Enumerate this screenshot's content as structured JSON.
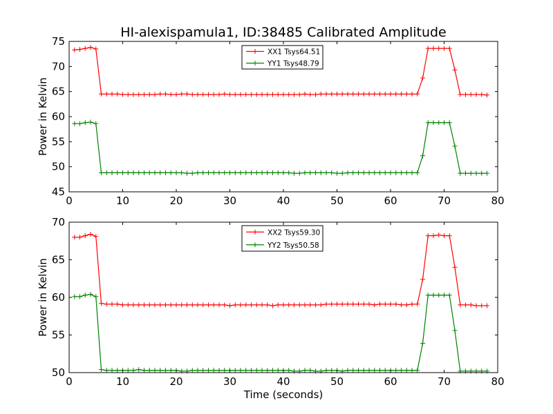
{
  "chart_data": [
    {
      "type": "line",
      "title": "HI-alexispamula1, ID:38485 Calibrated Amplitude",
      "xlabel": "",
      "ylabel": "Power in Kelvin",
      "xlim": [
        0,
        80
      ],
      "ylim": [
        45,
        75
      ],
      "xticks": [
        0,
        10,
        20,
        30,
        40,
        50,
        60,
        70,
        80
      ],
      "yticks": [
        45,
        50,
        55,
        60,
        65,
        70,
        75
      ],
      "grid": false,
      "legend_position": "top-center",
      "x": [
        1,
        2,
        3,
        4,
        5,
        6,
        7,
        8,
        9,
        10,
        11,
        12,
        13,
        14,
        15,
        16,
        17,
        18,
        19,
        20,
        21,
        22,
        23,
        24,
        25,
        26,
        27,
        28,
        29,
        30,
        31,
        32,
        33,
        34,
        35,
        36,
        37,
        38,
        39,
        40,
        41,
        42,
        43,
        44,
        45,
        46,
        47,
        48,
        49,
        50,
        51,
        52,
        53,
        54,
        55,
        56,
        57,
        58,
        59,
        60,
        61,
        62,
        63,
        64,
        65,
        66,
        67,
        68,
        69,
        70,
        71,
        72,
        73,
        74,
        75,
        76,
        77,
        78
      ],
      "series": [
        {
          "name": "XX1 Tsys64.51",
          "color": "#ff0000",
          "values": [
            73.3,
            73.4,
            73.6,
            73.8,
            73.5,
            64.5,
            64.5,
            64.5,
            64.5,
            64.4,
            64.4,
            64.4,
            64.4,
            64.4,
            64.4,
            64.4,
            64.5,
            64.5,
            64.4,
            64.4,
            64.5,
            64.5,
            64.4,
            64.4,
            64.4,
            64.4,
            64.4,
            64.4,
            64.5,
            64.4,
            64.4,
            64.4,
            64.4,
            64.4,
            64.4,
            64.4,
            64.4,
            64.4,
            64.4,
            64.4,
            64.4,
            64.4,
            64.4,
            64.5,
            64.4,
            64.4,
            64.5,
            64.5,
            64.5,
            64.5,
            64.5,
            64.5,
            64.5,
            64.5,
            64.5,
            64.5,
            64.5,
            64.5,
            64.5,
            64.5,
            64.5,
            64.5,
            64.5,
            64.5,
            64.5,
            67.7,
            73.6,
            73.6,
            73.6,
            73.6,
            73.6,
            69.3,
            64.4,
            64.4,
            64.4,
            64.4,
            64.4,
            64.3
          ]
        },
        {
          "name": "YY1 Tsys48.79",
          "color": "#008000",
          "values": [
            58.6,
            58.6,
            58.8,
            58.9,
            58.6,
            48.8,
            48.8,
            48.8,
            48.8,
            48.8,
            48.8,
            48.8,
            48.8,
            48.8,
            48.8,
            48.8,
            48.8,
            48.8,
            48.8,
            48.8,
            48.8,
            48.7,
            48.7,
            48.8,
            48.8,
            48.8,
            48.8,
            48.8,
            48.8,
            48.8,
            48.8,
            48.8,
            48.8,
            48.8,
            48.8,
            48.8,
            48.8,
            48.8,
            48.8,
            48.8,
            48.8,
            48.7,
            48.7,
            48.8,
            48.8,
            48.8,
            48.8,
            48.8,
            48.8,
            48.7,
            48.7,
            48.8,
            48.8,
            48.8,
            48.8,
            48.8,
            48.8,
            48.8,
            48.8,
            48.8,
            48.8,
            48.8,
            48.8,
            48.8,
            48.8,
            52.2,
            58.8,
            58.8,
            58.8,
            58.8,
            58.8,
            54.1,
            48.7,
            48.7,
            48.7,
            48.7,
            48.7,
            48.7
          ]
        }
      ]
    },
    {
      "type": "line",
      "title": "",
      "xlabel": "Time (seconds)",
      "ylabel": "Power in Kelvin",
      "xlim": [
        0,
        80
      ],
      "ylim": [
        50,
        70
      ],
      "xticks": [
        0,
        10,
        20,
        30,
        40,
        50,
        60,
        70,
        80
      ],
      "yticks": [
        50,
        55,
        60,
        65,
        70
      ],
      "grid": false,
      "legend_position": "top-center",
      "x": [
        1,
        2,
        3,
        4,
        5,
        6,
        7,
        8,
        9,
        10,
        11,
        12,
        13,
        14,
        15,
        16,
        17,
        18,
        19,
        20,
        21,
        22,
        23,
        24,
        25,
        26,
        27,
        28,
        29,
        30,
        31,
        32,
        33,
        34,
        35,
        36,
        37,
        38,
        39,
        40,
        41,
        42,
        43,
        44,
        45,
        46,
        47,
        48,
        49,
        50,
        51,
        52,
        53,
        54,
        55,
        56,
        57,
        58,
        59,
        60,
        61,
        62,
        63,
        64,
        65,
        66,
        67,
        68,
        69,
        70,
        71,
        72,
        73,
        74,
        75,
        76,
        77,
        78
      ],
      "series": [
        {
          "name": "XX2 Tsys59.30",
          "color": "#ff0000",
          "values": [
            68.0,
            68.0,
            68.2,
            68.4,
            68.1,
            59.2,
            59.1,
            59.1,
            59.1,
            59.0,
            59.0,
            59.0,
            59.0,
            59.0,
            59.0,
            59.0,
            59.0,
            59.0,
            59.0,
            59.0,
            59.0,
            59.0,
            59.0,
            59.0,
            59.0,
            59.0,
            59.0,
            59.0,
            59.0,
            58.9,
            59.0,
            59.0,
            59.0,
            59.0,
            59.0,
            59.0,
            59.0,
            58.9,
            59.0,
            59.0,
            59.0,
            59.0,
            59.0,
            59.0,
            59.0,
            59.0,
            59.0,
            59.1,
            59.1,
            59.1,
            59.1,
            59.1,
            59.1,
            59.1,
            59.1,
            59.1,
            59.0,
            59.1,
            59.1,
            59.1,
            59.1,
            59.0,
            59.0,
            59.1,
            59.1,
            62.4,
            68.2,
            68.2,
            68.3,
            68.2,
            68.2,
            64.0,
            59.0,
            59.0,
            59.0,
            58.9,
            58.9,
            58.9
          ]
        },
        {
          "name": "YY2 Tsys50.58",
          "color": "#008000",
          "values": [
            60.1,
            60.1,
            60.3,
            60.4,
            60.1,
            50.4,
            50.3,
            50.3,
            50.3,
            50.3,
            50.3,
            50.3,
            50.4,
            50.3,
            50.3,
            50.3,
            50.3,
            50.3,
            50.3,
            50.3,
            50.2,
            50.2,
            50.3,
            50.3,
            50.3,
            50.3,
            50.3,
            50.3,
            50.3,
            50.3,
            50.3,
            50.3,
            50.3,
            50.3,
            50.3,
            50.3,
            50.3,
            50.3,
            50.3,
            50.3,
            50.3,
            50.2,
            50.2,
            50.3,
            50.3,
            50.2,
            50.2,
            50.3,
            50.3,
            50.3,
            50.2,
            50.3,
            50.3,
            50.3,
            50.3,
            50.3,
            50.3,
            50.3,
            50.3,
            50.3,
            50.3,
            50.3,
            50.3,
            50.3,
            50.3,
            53.9,
            60.3,
            60.3,
            60.3,
            60.3,
            60.3,
            55.6,
            50.2,
            50.2,
            50.2,
            50.2,
            50.2,
            50.2
          ]
        }
      ]
    }
  ]
}
